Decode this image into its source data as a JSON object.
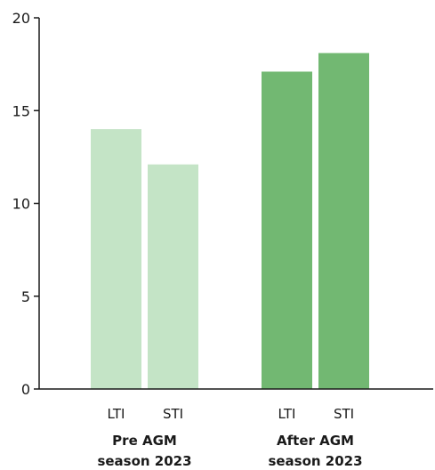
{
  "chart_data": {
    "type": "bar",
    "ylim": [
      0,
      20
    ],
    "yticks": [
      "0",
      "5",
      "10",
      "15",
      "20"
    ],
    "groups": [
      {
        "label_line1": "Pre AGM",
        "label_line2": "season 2023",
        "color": "#c4e4c6",
        "bars": [
          {
            "category": "LTI",
            "value": 14
          },
          {
            "category": "STI",
            "value": 12.1
          }
        ]
      },
      {
        "label_line1": "After AGM",
        "label_line2": "season 2023",
        "color": "#72b872",
        "bars": [
          {
            "category": "LTI",
            "value": 17.1
          },
          {
            "category": "STI",
            "value": 18.1
          }
        ]
      }
    ]
  }
}
